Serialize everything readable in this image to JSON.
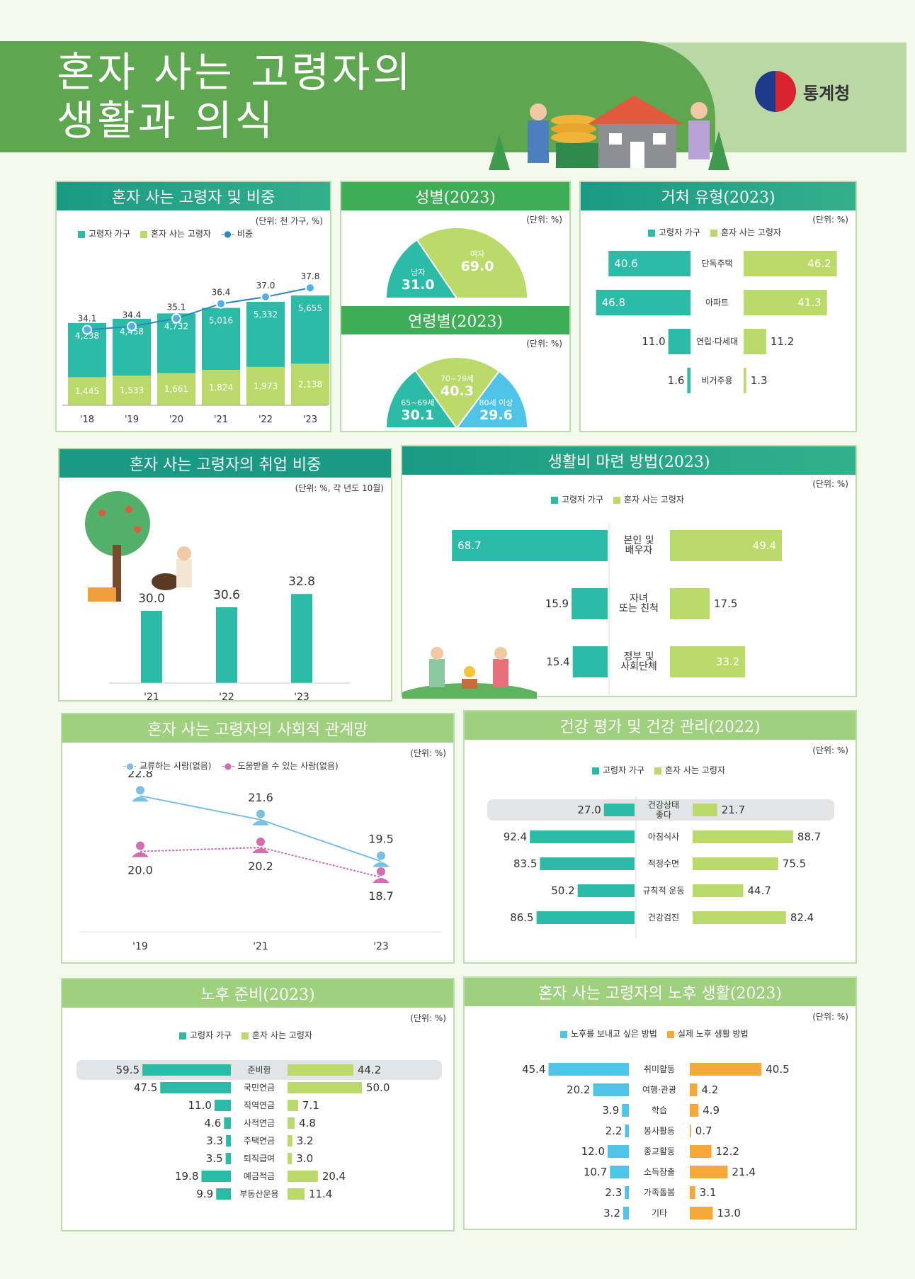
{
  "title": {
    "line1": "혼자 사는 고령자의",
    "line2": "생활과 의식"
  },
  "org": "통계청",
  "colors": {
    "teal": "#2bbba7",
    "lime": "#bada6a",
    "blue": "#4fc3e8",
    "orange": "#f5a93b",
    "pink": "#d36fb1",
    "lightblue": "#78c0e4"
  },
  "legend": {
    "elderly_household": "고령자 가구",
    "living_alone": "혼자 사는 고령자",
    "share": "비중",
    "wish": "노후를 보내고 싶은 방법",
    "actual": "실제 노후 생활 방법",
    "contact": "교류하는 사람(없음)",
    "help": "도움받을 수 있는 사람(없음)"
  },
  "panels": {
    "p1": {
      "title": "혼자 사는 고령자 및 비중",
      "unit": "(단위: 천 가구, %)"
    },
    "p2": {
      "title": "성별(2023)",
      "unit": "(단위: %)",
      "title2": "연령별(2023)",
      "unit2": "(단위: %)"
    },
    "p3": {
      "title": "거처 유형(2023)",
      "unit": "(단위: %)"
    },
    "p4": {
      "title": "혼자 사는 고령자의 취업 비중",
      "unit": "(단위: %, 각 년도 10월)"
    },
    "p5": {
      "title": "생활비 마련 방법(2023)",
      "unit": "(단위: %)"
    },
    "p6": {
      "title": "혼자 사는 고령자의 사회적 관계망",
      "unit": "(단위: %)"
    },
    "p7": {
      "title": "건강 평가 및 건강 관리(2022)",
      "unit": "(단위: %)"
    },
    "p8": {
      "title": "노후 준비(2023)",
      "unit": "(단위: %)"
    },
    "p9": {
      "title": "혼자 사는 고령자의 노후 생활(2023)",
      "unit": "(단위: %)"
    }
  },
  "chart_data": [
    {
      "type": "bar",
      "title": "혼자 사는 고령자 및 비중",
      "categories": [
        "'18",
        "'19",
        "'20",
        "'21",
        "'22",
        "'23"
      ],
      "series": [
        {
          "name": "고령자 가구",
          "values": [
            4238,
            4458,
            4732,
            5016,
            5332,
            5655
          ]
        },
        {
          "name": "혼자 사는 고령자",
          "values": [
            1445,
            1533,
            1661,
            1824,
            1973,
            2138
          ]
        },
        {
          "name": "비중",
          "values": [
            34.1,
            34.4,
            35.1,
            36.4,
            37.0,
            37.8
          ]
        }
      ],
      "value_labels": {
        "total": [
          "4,238",
          "4,458",
          "4,732",
          "5,016",
          "5,332",
          "5,655"
        ],
        "alone": [
          "1,445",
          "1,533",
          "1,661",
          "1,824",
          "1,973",
          "2,138"
        ],
        "share": [
          "34.1",
          "34.4",
          "35.1",
          "36.4",
          "37.0",
          "37.8"
        ]
      }
    },
    {
      "type": "pie",
      "title": "성별(2023)",
      "labels": [
        "남자",
        "여자"
      ],
      "values": [
        31.0,
        69.0
      ],
      "value_labels": [
        "31.0",
        "69.0"
      ]
    },
    {
      "type": "pie",
      "title": "연령별(2023)",
      "labels": [
        "65~69세",
        "70~79세",
        "80세 이상"
      ],
      "values": [
        30.1,
        40.3,
        29.6
      ],
      "value_labels": [
        "30.1",
        "40.3",
        "29.6"
      ]
    },
    {
      "type": "bar",
      "title": "거처 유형(2023)",
      "categories": [
        "단독주택",
        "아파트",
        "연립·다세대",
        "비거주용"
      ],
      "series": [
        {
          "name": "고령자 가구",
          "values": [
            40.6,
            46.8,
            11.0,
            1.6
          ]
        },
        {
          "name": "혼자 사는 고령자",
          "values": [
            46.2,
            41.3,
            11.2,
            1.3
          ]
        }
      ],
      "value_labels": {
        "left": [
          "40.6",
          "46.8",
          "11.0",
          "1.6"
        ],
        "right": [
          "46.2",
          "41.3",
          "11.2",
          "1.3"
        ]
      }
    },
    {
      "type": "bar",
      "title": "혼자 사는 고령자의 취업 비중",
      "categories": [
        "'21",
        "'22",
        "'23"
      ],
      "values": [
        30.0,
        30.6,
        32.8
      ],
      "value_labels": [
        "30.0",
        "30.6",
        "32.8"
      ]
    },
    {
      "type": "bar",
      "title": "생활비 마련 방법(2023)",
      "categories": [
        "본인 및\n배우자",
        "자녀\n또는 친척",
        "정부 및\n사회단체"
      ],
      "series": [
        {
          "name": "고령자 가구",
          "values": [
            68.7,
            15.9,
            15.4
          ]
        },
        {
          "name": "혼자 사는 고령자",
          "values": [
            49.4,
            17.5,
            33.2
          ]
        }
      ],
      "value_labels": {
        "left": [
          "68.7",
          "15.9",
          "15.4"
        ],
        "right": [
          "49.4",
          "17.5",
          "33.2"
        ]
      }
    },
    {
      "type": "line",
      "title": "혼자 사는 고령자의 사회적 관계망",
      "categories": [
        "'19",
        "'21",
        "'23"
      ],
      "series": [
        {
          "name": "교류하는 사람(없음)",
          "values": [
            22.8,
            21.6,
            19.5
          ]
        },
        {
          "name": "도움받을 수 있는 사람(없음)",
          "values": [
            20.0,
            20.2,
            18.7
          ]
        }
      ],
      "value_labels": {
        "contact": [
          "22.8",
          "21.6",
          "19.5"
        ],
        "help": [
          "20.0",
          "20.2",
          "18.7"
        ]
      }
    },
    {
      "type": "bar",
      "title": "건강 평가 및 건강 관리(2022)",
      "categories": [
        "건강상태\n좋다",
        "아침식사",
        "적정수면",
        "규칙적 운동",
        "건강검진"
      ],
      "series": [
        {
          "name": "고령자 가구",
          "values": [
            27.0,
            92.4,
            83.5,
            50.2,
            86.5
          ]
        },
        {
          "name": "혼자 사는 고령자",
          "values": [
            21.7,
            88.7,
            75.5,
            44.7,
            82.4
          ]
        }
      ],
      "value_labels": {
        "left": [
          "27.0",
          "92.4",
          "83.5",
          "50.2",
          "86.5"
        ],
        "right": [
          "21.7",
          "88.7",
          "75.5",
          "44.7",
          "82.4"
        ]
      }
    },
    {
      "type": "bar",
      "title": "노후 준비(2023)",
      "categories": [
        "준비함",
        "국민연금",
        "직역연금",
        "사적연금",
        "주택연금",
        "퇴직급여",
        "예금적금",
        "부동산운용"
      ],
      "series": [
        {
          "name": "고령자 가구",
          "values": [
            59.5,
            47.5,
            11.0,
            4.6,
            3.3,
            3.5,
            19.8,
            9.9
          ]
        },
        {
          "name": "혼자 사는 고령자",
          "values": [
            44.2,
            50.0,
            7.1,
            4.8,
            3.2,
            3.0,
            20.4,
            11.4
          ]
        }
      ],
      "value_labels": {
        "left": [
          "59.5",
          "47.5",
          "11.0",
          "4.6",
          "3.3",
          "3.5",
          "19.8",
          "9.9"
        ],
        "right": [
          "44.2",
          "50.0",
          "7.1",
          "4.8",
          "3.2",
          "3.0",
          "20.4",
          "11.4"
        ]
      }
    },
    {
      "type": "bar",
      "title": "혼자 사는 고령자의 노후 생활(2023)",
      "categories": [
        "취미활동",
        "여행·관광",
        "학습",
        "봉사활동",
        "종교활동",
        "소득창출",
        "가족돌봄",
        "기타"
      ],
      "series": [
        {
          "name": "노후를 보내고 싶은 방법",
          "values": [
            45.4,
            20.2,
            3.9,
            2.2,
            12.0,
            10.7,
            2.3,
            3.2
          ]
        },
        {
          "name": "실제 노후 생활 방법",
          "values": [
            40.5,
            4.2,
            4.9,
            0.7,
            12.2,
            21.4,
            3.1,
            13.0
          ]
        }
      ],
      "value_labels": {
        "left": [
          "45.4",
          "20.2",
          "3.9",
          "2.2",
          "12.0",
          "10.7",
          "2.3",
          "3.2"
        ],
        "right": [
          "40.5",
          "4.2",
          "4.9",
          "0.7",
          "12.2",
          "21.4",
          "3.1",
          "13.0"
        ]
      }
    }
  ]
}
